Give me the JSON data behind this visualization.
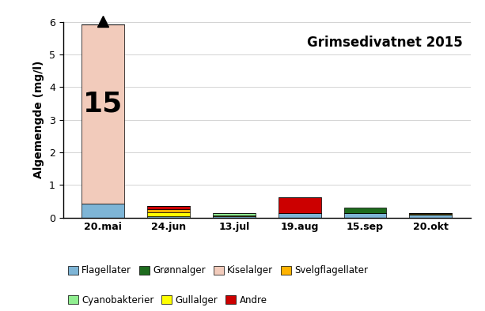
{
  "categories": [
    "20.mai",
    "24.jun",
    "13.jul",
    "19.aug",
    "15.sep",
    "20.okt"
  ],
  "series": {
    "Flagellater": [
      0.42,
      0.05,
      0.04,
      0.13,
      0.15,
      0.1
    ],
    "Grønnalger": [
      0.0,
      0.0,
      0.01,
      0.0,
      0.17,
      0.0
    ],
    "Kiselalger": [
      5.5,
      0.0,
      0.0,
      0.0,
      0.0,
      0.0
    ],
    "Svelgflagellater": [
      0.0,
      0.1,
      0.0,
      0.0,
      0.0,
      0.02
    ],
    "Cyanobakterier": [
      0.0,
      0.0,
      0.07,
      0.0,
      0.0,
      0.0
    ],
    "Gullalger": [
      0.0,
      0.12,
      0.02,
      0.0,
      0.0,
      0.01
    ],
    "Andre": [
      0.0,
      0.08,
      0.01,
      0.5,
      0.0,
      0.0
    ]
  },
  "colors": {
    "Flagellater": "#7EB5D6",
    "Grønnalger": "#1D6B1D",
    "Kiselalger": "#F2CBBB",
    "Svelgflagellater": "#FFB300",
    "Cyanobakterier": "#90EE90",
    "Gullalger": "#FFFF00",
    "Andre": "#CC0000"
  },
  "title": "Grimsedivatnet 2015",
  "ylabel": "Algemengde (mg/l)",
  "ylim": [
    0,
    6
  ],
  "yticks": [
    0,
    1,
    2,
    3,
    4,
    5,
    6
  ],
  "annotation_text": "15",
  "bar_width": 0.65,
  "stack_order": [
    "Flagellater",
    "Kiselalger",
    "Gullalger",
    "Svelgflagellater",
    "Andre",
    "Cyanobakterier",
    "Grønnalger"
  ],
  "legend_row1": [
    "Flagellater",
    "Grønnalger",
    "Kiselalger",
    "Svelgflagellater"
  ],
  "legend_row2": [
    "Cyanobakterier",
    "Gullalger",
    "Andre"
  ]
}
